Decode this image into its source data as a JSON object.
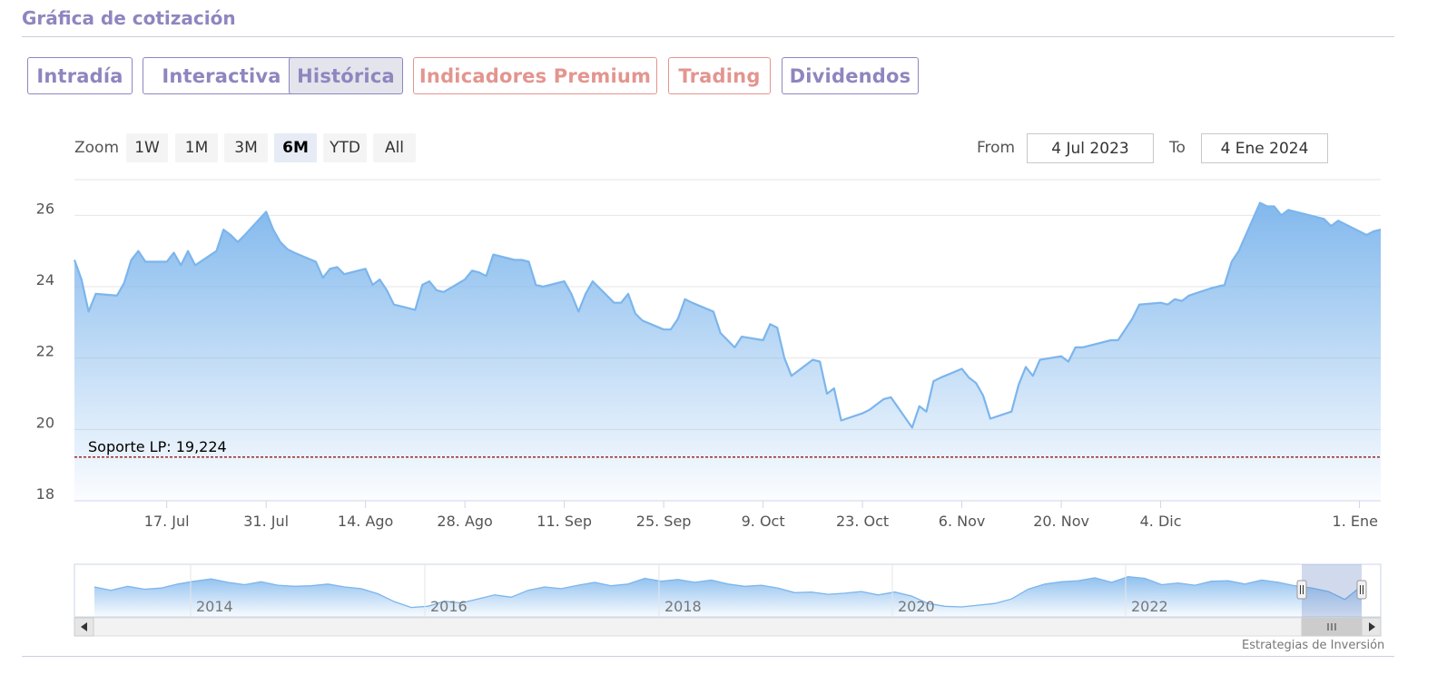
{
  "header": {
    "title": "Gráfica de cotización"
  },
  "tabs": [
    {
      "label": "Intradía",
      "active": false,
      "premium": false
    },
    {
      "label": "Interactiva",
      "active": false,
      "premium": false
    },
    {
      "label": "Histórica",
      "active": true,
      "premium": false
    },
    {
      "label": "Indicadores Premium",
      "active": false,
      "premium": true
    },
    {
      "label": "Trading",
      "active": false,
      "premium": true
    },
    {
      "label": "Dividendos",
      "active": false,
      "premium": false
    }
  ],
  "range_selector": {
    "zoom_label": "Zoom",
    "buttons": [
      "1W",
      "1M",
      "3M",
      "6M",
      "YTD",
      "All"
    ],
    "selected": "6M",
    "from_label": "From",
    "from_value": "4 Jul 2023",
    "to_label": "To",
    "to_value": "4 Ene 2024"
  },
  "colors": {
    "accent": "#8e86bf",
    "premium": "#e3958f",
    "series_line": "#7cb5ec",
    "support_line": "#8b0000"
  },
  "credits": "Estrategias de Inversión",
  "chart_data": {
    "type": "area",
    "ylim": [
      18,
      27
    ],
    "yticks": [
      "18",
      "20",
      "22",
      "24",
      "26"
    ],
    "xticks": [
      "17. Jul",
      "31. Jul",
      "14. Ago",
      "28. Ago",
      "11. Sep",
      "25. Sep",
      "9. Oct",
      "23. Oct",
      "6. Nov",
      "20. Nov",
      "4. Dic",
      "1. Ene"
    ],
    "grid": true,
    "plot_line": {
      "label": "Soporte LP: 19,224",
      "value": 19.224
    },
    "series": [
      {
        "x": [
          "2023-07-04",
          "2023-07-05",
          "2023-07-06",
          "2023-07-07",
          "2023-07-10",
          "2023-07-11",
          "2023-07-12",
          "2023-07-13",
          "2023-07-14",
          "2023-07-17",
          "2023-07-18",
          "2023-07-19",
          "2023-07-20",
          "2023-07-21",
          "2023-07-24",
          "2023-07-25",
          "2023-07-26",
          "2023-07-27",
          "2023-07-28",
          "2023-07-31",
          "2023-08-01",
          "2023-08-02",
          "2023-08-03",
          "2023-08-04",
          "2023-08-07",
          "2023-08-08",
          "2023-08-09",
          "2023-08-10",
          "2023-08-11",
          "2023-08-14",
          "2023-08-15",
          "2023-08-16",
          "2023-08-17",
          "2023-08-18",
          "2023-08-21",
          "2023-08-22",
          "2023-08-23",
          "2023-08-24",
          "2023-08-25",
          "2023-08-28",
          "2023-08-29",
          "2023-08-30",
          "2023-08-31",
          "2023-09-01",
          "2023-09-04",
          "2023-09-05",
          "2023-09-06",
          "2023-09-07",
          "2023-09-08",
          "2023-09-11",
          "2023-09-12",
          "2023-09-13",
          "2023-09-14",
          "2023-09-15",
          "2023-09-18",
          "2023-09-19",
          "2023-09-20",
          "2023-09-21",
          "2023-09-22",
          "2023-09-25",
          "2023-09-26",
          "2023-09-27",
          "2023-09-28",
          "2023-09-29",
          "2023-10-02",
          "2023-10-03",
          "2023-10-04",
          "2023-10-05",
          "2023-10-06",
          "2023-10-09",
          "2023-10-10",
          "2023-10-11",
          "2023-10-12",
          "2023-10-13",
          "2023-10-16",
          "2023-10-17",
          "2023-10-18",
          "2023-10-19",
          "2023-10-20",
          "2023-10-23",
          "2023-10-24",
          "2023-10-25",
          "2023-10-26",
          "2023-10-27",
          "2023-10-30",
          "2023-10-31",
          "2023-11-01",
          "2023-11-02",
          "2023-11-03",
          "2023-11-06",
          "2023-11-07",
          "2023-11-08",
          "2023-11-09",
          "2023-11-10",
          "2023-11-13",
          "2023-11-14",
          "2023-11-15",
          "2023-11-16",
          "2023-11-17",
          "2023-11-20",
          "2023-11-21",
          "2023-11-22",
          "2023-11-23",
          "2023-11-24",
          "2023-11-27",
          "2023-11-28",
          "2023-11-29",
          "2023-11-30",
          "2023-12-01",
          "2023-12-04",
          "2023-12-05",
          "2023-12-06",
          "2023-12-07",
          "2023-12-08",
          "2023-12-11",
          "2023-12-12",
          "2023-12-13",
          "2023-12-14",
          "2023-12-15",
          "2023-12-18",
          "2023-12-19",
          "2023-12-20",
          "2023-12-21",
          "2023-12-22",
          "2023-12-26",
          "2023-12-27",
          "2023-12-28",
          "2023-12-29",
          "2024-01-02",
          "2024-01-03",
          "2024-01-04"
        ],
        "y": [
          24.75,
          24.2,
          23.3,
          23.8,
          23.75,
          24.1,
          24.75,
          25.0,
          24.7,
          24.7,
          24.95,
          24.6,
          25.0,
          24.6,
          25.0,
          25.6,
          25.45,
          25.25,
          25.45,
          26.1,
          25.6,
          25.25,
          25.05,
          24.95,
          24.7,
          24.25,
          24.5,
          24.55,
          24.35,
          24.5,
          24.05,
          24.2,
          23.9,
          23.5,
          23.35,
          24.05,
          24.15,
          23.9,
          23.85,
          24.2,
          24.45,
          24.4,
          24.3,
          24.9,
          24.75,
          24.75,
          24.7,
          24.05,
          24.0,
          24.15,
          23.8,
          23.3,
          23.8,
          24.15,
          23.55,
          23.55,
          23.8,
          23.25,
          23.05,
          22.8,
          22.8,
          23.1,
          23.65,
          23.55,
          23.3,
          22.7,
          22.5,
          22.3,
          22.6,
          22.5,
          22.95,
          22.85,
          22.0,
          21.5,
          21.95,
          21.9,
          21.0,
          21.15,
          20.25,
          20.45,
          20.55,
          20.7,
          20.85,
          20.9,
          20.05,
          20.65,
          20.5,
          21.35,
          21.45,
          21.7,
          21.45,
          21.3,
          20.95,
          20.3,
          20.5,
          21.25,
          21.75,
          21.5,
          21.95,
          22.05,
          21.9,
          22.3,
          22.3,
          22.35,
          22.5,
          22.5,
          22.8,
          23.1,
          23.5,
          23.55,
          23.5,
          23.65,
          23.6,
          23.75,
          23.95,
          24.0,
          24.05,
          24.7,
          25.0,
          26.35,
          26.25,
          26.25,
          26.0,
          26.15,
          25.95,
          25.9,
          25.7,
          25.85,
          25.45,
          25.55,
          25.6
        ]
      }
    ],
    "navigator": {
      "xticks": [
        "2014",
        "2016",
        "2018",
        "2020",
        "2022"
      ],
      "y": [
        23.8,
        23.2,
        23.9,
        23.4,
        23.6,
        24.3,
        24.8,
        25.2,
        24.6,
        24.2,
        24.7,
        24.1,
        23.9,
        24.0,
        24.3,
        23.8,
        23.5,
        22.6,
        21.2,
        20.2,
        20.4,
        21.3,
        21.0,
        21.7,
        22.4,
        22.0,
        23.2,
        23.8,
        23.5,
        24.1,
        24.6,
        24.0,
        24.3,
        25.3,
        24.8,
        25.1,
        24.6,
        25.0,
        24.3,
        23.9,
        24.1,
        23.6,
        22.8,
        22.9,
        22.5,
        22.7,
        23.0,
        22.4,
        22.9,
        22.2,
        20.9,
        20.4,
        20.3,
        20.6,
        20.9,
        21.7,
        23.4,
        24.3,
        24.7,
        24.9,
        25.4,
        24.6,
        25.6,
        25.3,
        24.2,
        24.5,
        24.1,
        24.8,
        24.9,
        24.3,
        25.0,
        24.6,
        24.0,
        23.6,
        23.0,
        21.6,
        24.0
      ]
    }
  }
}
